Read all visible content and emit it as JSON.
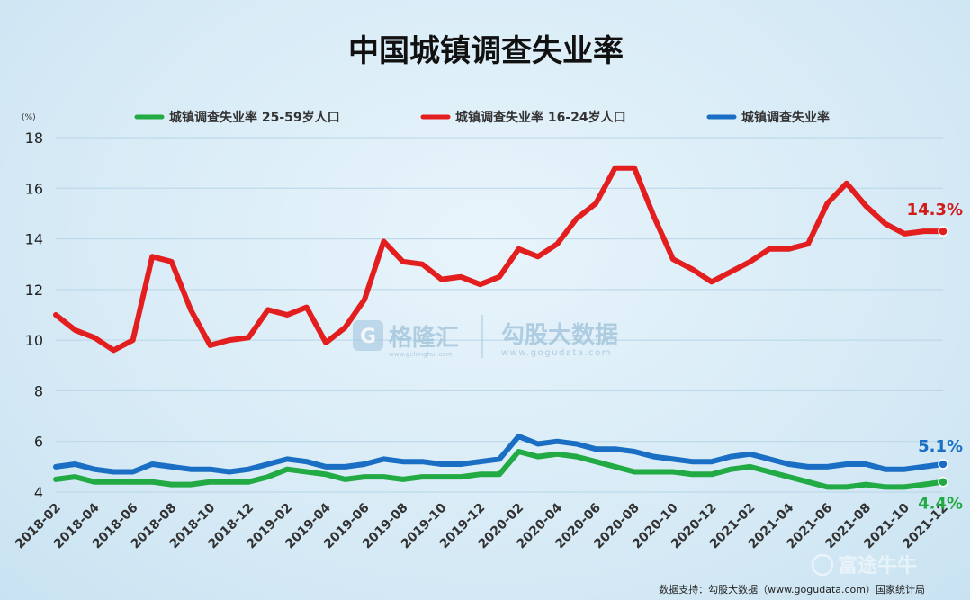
{
  "chart_data": {
    "type": "line",
    "title": "中国城镇调查失业率",
    "unit_label": "(%)",
    "ylim": [
      4,
      18
    ],
    "y_ticks": [
      4,
      6,
      8,
      10,
      12,
      14,
      16,
      18
    ],
    "grid": true,
    "legend_position": "top",
    "x": [
      "2018-02",
      "2018-03",
      "2018-04",
      "2018-05",
      "2018-06",
      "2018-07",
      "2018-08",
      "2018-09",
      "2018-10",
      "2018-11",
      "2018-12",
      "2019-01",
      "2019-02",
      "2019-03",
      "2019-04",
      "2019-05",
      "2019-06",
      "2019-07",
      "2019-08",
      "2019-09",
      "2019-10",
      "2019-11",
      "2019-12",
      "2020-01",
      "2020-02",
      "2020-03",
      "2020-04",
      "2020-05",
      "2020-06",
      "2020-07",
      "2020-08",
      "2020-09",
      "2020-10",
      "2020-11",
      "2020-12",
      "2021-01",
      "2021-02",
      "2021-03",
      "2021-04",
      "2021-05",
      "2021-06",
      "2021-07",
      "2021-08",
      "2021-09",
      "2021-10",
      "2021-11",
      "2021-12"
    ],
    "x_tick_labels": [
      "2018-02",
      "2018-04",
      "2018-06",
      "2018-08",
      "2018-10",
      "2018-12",
      "2019-02",
      "2019-04",
      "2019-06",
      "2019-08",
      "2019-10",
      "2019-12",
      "2020-02",
      "2020-04",
      "2020-06",
      "2020-08",
      "2020-10",
      "2020-12",
      "2021-02",
      "2021-04",
      "2021-06",
      "2021-08",
      "2021-10",
      "2021-12"
    ],
    "series": [
      {
        "name": "城镇调查失业率 25-59岁人口",
        "color": "#22aa44",
        "values": [
          4.5,
          4.6,
          4.4,
          4.4,
          4.4,
          4.4,
          4.3,
          4.3,
          4.4,
          4.4,
          4.4,
          4.6,
          4.9,
          4.8,
          4.7,
          4.5,
          4.6,
          4.6,
          4.5,
          4.6,
          4.6,
          4.6,
          4.7,
          4.7,
          5.6,
          5.4,
          5.5,
          5.4,
          5.2,
          5.0,
          4.8,
          4.8,
          4.8,
          4.7,
          4.7,
          4.9,
          5.0,
          4.8,
          4.6,
          4.4,
          4.2,
          4.2,
          4.3,
          4.2,
          4.2,
          4.3,
          4.4
        ]
      },
      {
        "name": "城镇调查失业率 16-24岁人口",
        "color": "#e31e1e",
        "values": [
          11.0,
          10.4,
          10.1,
          9.6,
          10.0,
          13.3,
          13.1,
          11.2,
          9.8,
          10.0,
          10.1,
          11.2,
          11.0,
          11.3,
          9.9,
          10.5,
          11.6,
          13.9,
          13.1,
          13.0,
          12.4,
          12.5,
          12.2,
          12.5,
          13.6,
          13.3,
          13.8,
          14.8,
          15.4,
          16.8,
          16.8,
          14.9,
          13.2,
          12.8,
          12.3,
          12.7,
          13.1,
          13.6,
          13.6,
          13.8,
          15.4,
          16.2,
          15.3,
          14.6,
          14.2,
          14.3,
          14.3
        ]
      },
      {
        "name": "城镇调查失业率",
        "color": "#1a6fc4",
        "values": [
          5.0,
          5.1,
          4.9,
          4.8,
          4.8,
          5.1,
          5.0,
          4.9,
          4.9,
          4.8,
          4.9,
          5.1,
          5.3,
          5.2,
          5.0,
          5.0,
          5.1,
          5.3,
          5.2,
          5.2,
          5.1,
          5.1,
          5.2,
          5.3,
          6.2,
          5.9,
          6.0,
          5.9,
          5.7,
          5.7,
          5.6,
          5.4,
          5.3,
          5.2,
          5.2,
          5.4,
          5.5,
          5.3,
          5.1,
          5.0,
          5.0,
          5.1,
          5.1,
          4.9,
          4.9,
          5.0,
          5.1
        ]
      }
    ],
    "annotations": [
      {
        "text": "14.3%",
        "series": 1,
        "color": "#d11a1a"
      },
      {
        "text": "5.1%",
        "series": 2,
        "color": "#1a6fc4"
      },
      {
        "text": "4.4%",
        "series": 0,
        "color": "#22aa44"
      }
    ]
  },
  "watermark": {
    "brand1": "格隆汇",
    "brand1_url": "www.gelonghui.com",
    "brand2": "勾股大数据",
    "brand2_url": "www.gogudata.com"
  },
  "source_note": "数据支持：勾股大数据（www.gogudata.com）国家统计局",
  "corner_logo": "富途牛牛"
}
